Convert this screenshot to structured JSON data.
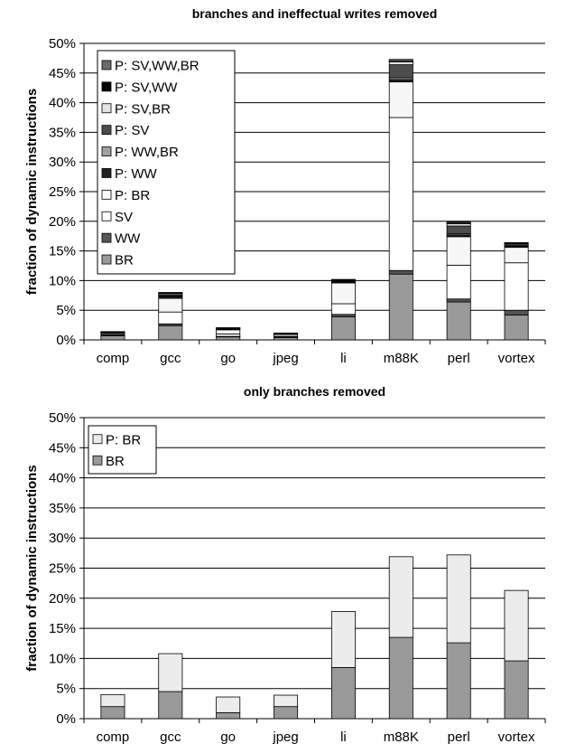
{
  "chart_data": [
    {
      "type": "bar",
      "stacked": true,
      "title": "branches and ineffectual writes removed",
      "ylabel": "fraction of dynamic instructions",
      "xlabel": "",
      "ylim": [
        0,
        50
      ],
      "yticks": [
        "0%",
        "5%",
        "10%",
        "15%",
        "20%",
        "25%",
        "30%",
        "35%",
        "40%",
        "45%",
        "50%"
      ],
      "categories": [
        "comp",
        "gcc",
        "go",
        "jpeg",
        "li",
        "m88K",
        "perl",
        "vortex"
      ],
      "grid": true,
      "legend": "top-left",
      "series": [
        {
          "name": "BR",
          "color": "#999999",
          "values": [
            0.7,
            2.4,
            0.5,
            0.4,
            3.9,
            11.1,
            6.4,
            4.2
          ]
        },
        {
          "name": "WW",
          "color": "#555555",
          "values": [
            0.1,
            0.3,
            0.1,
            0.1,
            0.4,
            0.6,
            0.5,
            0.8
          ]
        },
        {
          "name": "SV",
          "color": "#ffffff",
          "values": [
            0.1,
            2.0,
            0.4,
            0.1,
            1.8,
            25.8,
            5.7,
            8.0
          ]
        },
        {
          "name": "P: BR",
          "color": "#f7f7f7",
          "values": [
            0.2,
            2.3,
            0.7,
            0.3,
            3.5,
            6.0,
            4.8,
            2.6
          ]
        },
        {
          "name": "P: WW",
          "color": "#222222",
          "values": [
            0.05,
            0.3,
            0.05,
            0.05,
            0.2,
            0.4,
            0.3,
            0.2
          ]
        },
        {
          "name": "P: WW,BR",
          "color": "#a0a0a0",
          "values": [
            0.05,
            0.1,
            0.05,
            0.05,
            0.1,
            0.3,
            0.2,
            0.1
          ]
        },
        {
          "name": "P: SV",
          "color": "#4d4d4d",
          "values": [
            0.05,
            0.2,
            0.1,
            0.05,
            0.1,
            2.2,
            1.3,
            0.3
          ]
        },
        {
          "name": "P: SV,BR",
          "color": "#e3e3e3",
          "values": [
            0.05,
            0.2,
            0.1,
            0.05,
            0.1,
            0.5,
            0.4,
            0.1
          ]
        },
        {
          "name": "P: SV,WW",
          "color": "#000000",
          "values": [
            0.05,
            0.1,
            0.02,
            0.02,
            0.05,
            0.1,
            0.1,
            0.05
          ]
        },
        {
          "name": "P: SV,WW,BR",
          "color": "#6b6b6b",
          "values": [
            0.05,
            0.1,
            0.03,
            0.03,
            0.05,
            0.3,
            0.2,
            0.05
          ]
        }
      ]
    },
    {
      "type": "bar",
      "stacked": true,
      "title": "only branches removed",
      "ylabel": "fraction of dynamic instructions",
      "xlabel": "",
      "ylim": [
        0,
        50
      ],
      "yticks": [
        "0%",
        "5%",
        "10%",
        "15%",
        "20%",
        "25%",
        "30%",
        "35%",
        "40%",
        "45%",
        "50%"
      ],
      "categories": [
        "comp",
        "gcc",
        "go",
        "jpeg",
        "li",
        "m88K",
        "perl",
        "vortex"
      ],
      "grid": true,
      "legend": "top-left",
      "series": [
        {
          "name": "BR",
          "color": "#999999",
          "values": [
            2.0,
            4.5,
            1.0,
            2.0,
            8.5,
            13.5,
            12.6,
            9.6
          ]
        },
        {
          "name": "P: BR",
          "color": "#ececec",
          "values": [
            2.0,
            6.3,
            2.6,
            1.9,
            9.3,
            13.4,
            14.6,
            11.7
          ]
        }
      ]
    }
  ]
}
